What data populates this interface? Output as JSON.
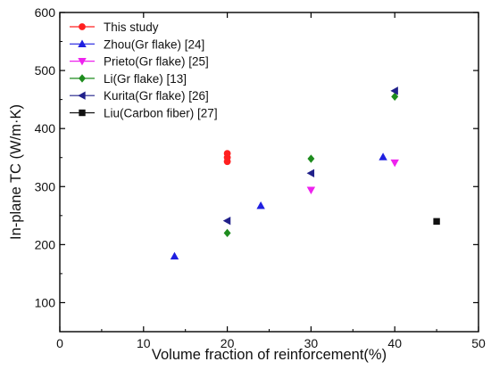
{
  "chart_data": {
    "type": "scatter",
    "xlabel": "Volume fraction of reinforcement(%)",
    "ylabel": "In-plane TC (W/m·K)",
    "xlim": [
      0,
      50
    ],
    "ylim": [
      50,
      600
    ],
    "xticks": [
      0,
      10,
      20,
      30,
      40,
      50
    ],
    "yticks": [
      100,
      200,
      300,
      400,
      500,
      600
    ],
    "grid": false,
    "legend_position": "top-left",
    "series": [
      {
        "name": "This study",
        "marker": "circle",
        "color": "#ff2020",
        "x": [
          20,
          20,
          20
        ],
        "y": [
          343,
          350,
          357
        ]
      },
      {
        "name": "Zhou(Gr flake) [24]",
        "marker": "triangle-up",
        "color": "#1f1fe0",
        "x": [
          13.7,
          24,
          38.6
        ],
        "y": [
          180,
          267,
          351
        ]
      },
      {
        "name": "Prieto(Gr flake) [25]",
        "marker": "triangle-down",
        "color": "#ee22ee",
        "x": [
          30,
          40
        ],
        "y": [
          294,
          341
        ]
      },
      {
        "name": "Li(Gr flake) [13]",
        "marker": "diamond",
        "color": "#1e8c1e",
        "x": [
          20,
          30,
          40
        ],
        "y": [
          220,
          348,
          455
        ]
      },
      {
        "name": "Kurita(Gr flake) [26]",
        "marker": "triangle-left",
        "color": "#20208a",
        "x": [
          20,
          30,
          40
        ],
        "y": [
          241,
          323,
          465
        ]
      },
      {
        "name": "Liu(Carbon fiber) [27]",
        "marker": "square",
        "color": "#111111",
        "x": [
          45
        ],
        "y": [
          240
        ]
      }
    ]
  }
}
